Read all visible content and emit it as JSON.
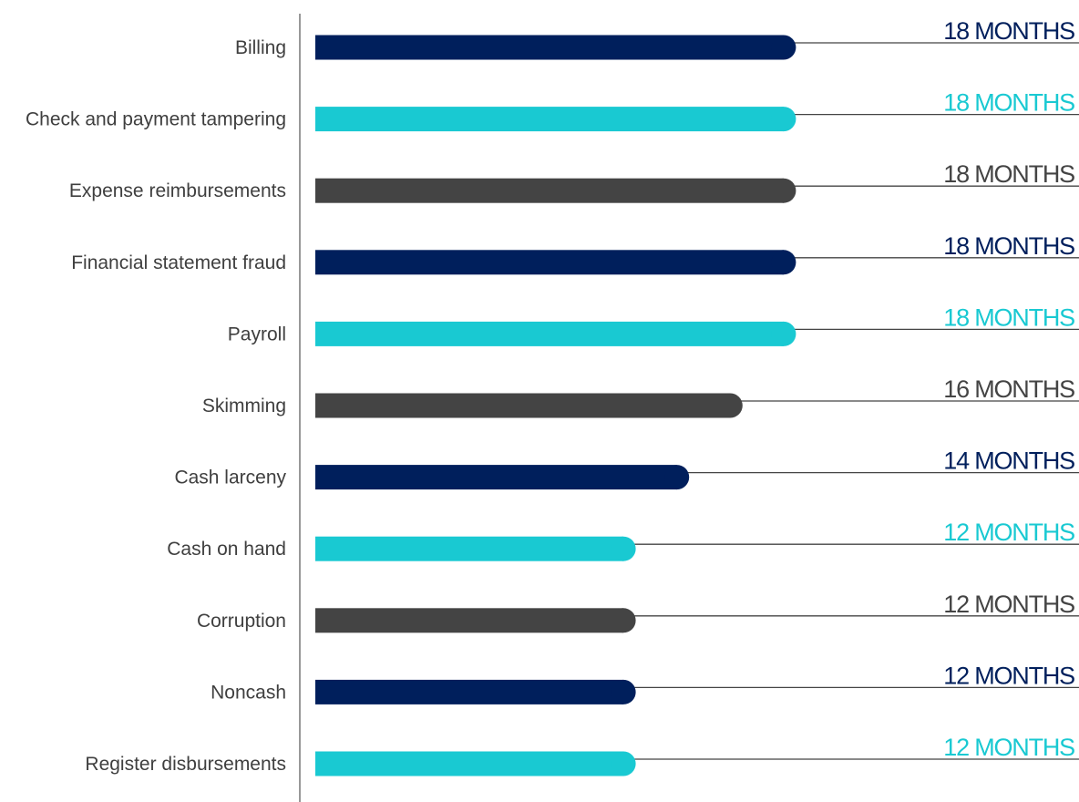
{
  "chart_data": {
    "type": "bar",
    "orientation": "horizontal",
    "categories": [
      "Billing",
      "Check and payment tampering",
      "Expense reimbursements",
      "Financial statement fraud",
      "Payroll",
      "Skimming",
      "Cash larceny",
      "Cash on hand",
      "Corruption",
      "Noncash",
      "Register disbursements"
    ],
    "values": [
      18,
      18,
      18,
      18,
      18,
      16,
      14,
      12,
      12,
      12,
      12
    ],
    "value_labels": [
      "18 MONTHS",
      "18 MONTHS",
      "18 MONTHS",
      "18 MONTHS",
      "18 MONTHS",
      "16 MONTHS",
      "14 MONTHS",
      "12 MONTHS",
      "12 MONTHS",
      "12 MONTHS",
      "12 MONTHS"
    ],
    "colors": [
      "#001f5c",
      "#19c9d2",
      "#444444",
      "#001f5c",
      "#19c9d2",
      "#444444",
      "#001f5c",
      "#19c9d2",
      "#444444",
      "#001f5c",
      "#19c9d2"
    ],
    "title": "",
    "xlabel": "",
    "ylabel": "",
    "xlim": [
      0,
      18
    ],
    "grid": false,
    "legend": "none"
  }
}
